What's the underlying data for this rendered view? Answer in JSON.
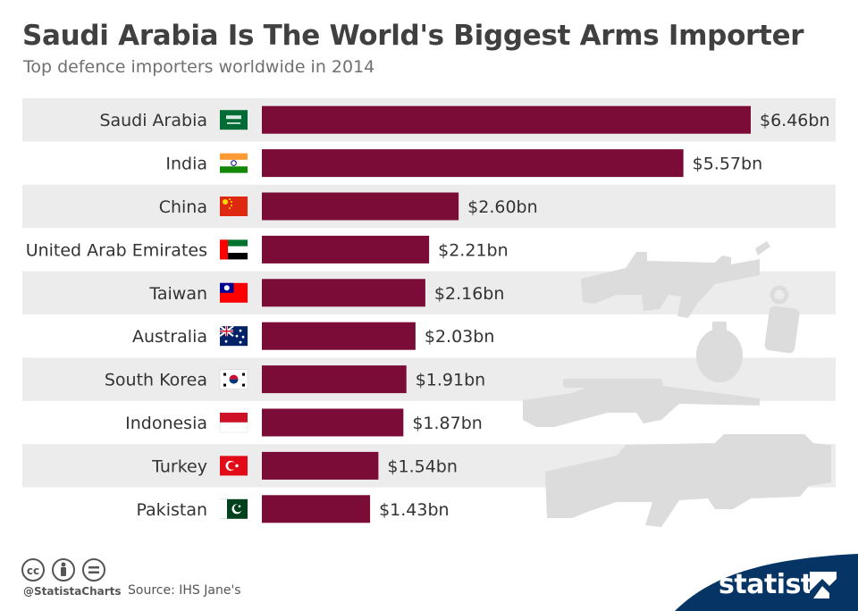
{
  "title": "Saudi Arabia Is The World's Biggest Arms Importer",
  "subtitle": "Top defence importers worldwide in 2014",
  "chart_data": {
    "type": "bar",
    "orientation": "horizontal",
    "categories": [
      "Saudi Arabia",
      "India",
      "China",
      "United Arab Emirates",
      "Taiwan",
      "Australia",
      "South Korea",
      "Indonesia",
      "Turkey",
      "Pakistan"
    ],
    "values": [
      6.46,
      5.57,
      2.6,
      2.21,
      2.16,
      2.03,
      1.91,
      1.87,
      1.54,
      1.43
    ],
    "value_labels": [
      "$6.46bn",
      "$5.57bn",
      "$2.60bn",
      "$2.21bn",
      "$2.16bn",
      "$2.03bn",
      "$1.91bn",
      "$1.87bn",
      "$1.54bn",
      "$1.43bn"
    ],
    "flags": [
      "saudi-arabia-flag-icon",
      "india-flag-icon",
      "china-flag-icon",
      "uae-flag-icon",
      "taiwan-flag-icon",
      "australia-flag-icon",
      "south-korea-flag-icon",
      "indonesia-flag-icon",
      "turkey-flag-icon",
      "pakistan-flag-icon"
    ],
    "xlim": [
      0,
      6.46
    ],
    "grid": false,
    "legend": "none",
    "bar_color": "#7b0c37",
    "stripe_color": "#ececec"
  },
  "footer": {
    "handle": "@StatistaCharts",
    "source": "Source: IHS Jane's",
    "brand": "statista",
    "brand_color": "#063565",
    "license_icons": [
      "cc-icon",
      "attribution-icon",
      "no-derivatives-icon"
    ]
  }
}
